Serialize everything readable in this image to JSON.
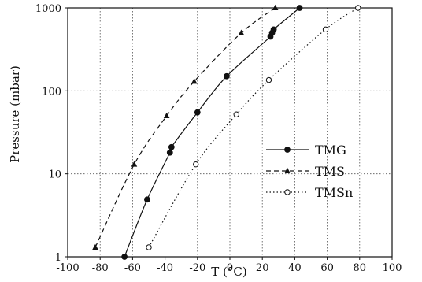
{
  "chart_data": {
    "type": "line",
    "title": "",
    "xlabel": "T (°C)",
    "ylabel": "Pressure (mbar)",
    "xlim": [
      -100,
      100
    ],
    "ylim": [
      1,
      1000
    ],
    "yscale": "log",
    "x_ticks": [
      "-100",
      "-80",
      "-60",
      "-40",
      "-20",
      "0",
      "20",
      "40",
      "60",
      "80",
      "100"
    ],
    "y_ticks": [
      "1",
      "10",
      "100",
      "1000"
    ],
    "grid": "dotted",
    "legend_position": "lower-right",
    "series": [
      {
        "name": "TMG",
        "line_style": "solid",
        "marker": "filled-circle",
        "x": [
          -65,
          -51,
          -37,
          -36,
          -20,
          -2,
          25,
          26,
          27,
          43
        ],
        "y": [
          1,
          4.9,
          18,
          21,
          55,
          150,
          450,
          500,
          550,
          1000
        ]
      },
      {
        "name": "TMS",
        "line_style": "dashed",
        "marker": "filled-triangle",
        "x": [
          -83,
          -59,
          -39,
          -22,
          7,
          28
        ],
        "y": [
          1.3,
          13,
          50,
          130,
          500,
          1000
        ]
      },
      {
        "name": "TMSn",
        "line_style": "dotted",
        "marker": "open-circle",
        "x": [
          -50,
          -21,
          4,
          24,
          59,
          79
        ],
        "y": [
          1.3,
          13,
          52,
          135,
          550,
          1000
        ]
      }
    ]
  }
}
